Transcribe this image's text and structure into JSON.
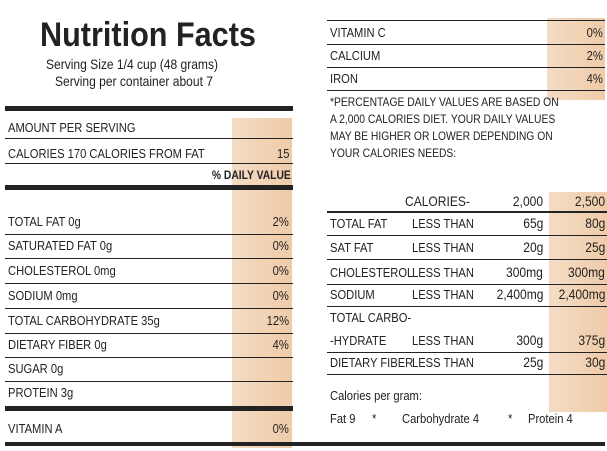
{
  "left": {
    "title": "Nutrition Facts",
    "serving_size": "Serving Size 1/4 cup (48 grams)",
    "servings": "Serving per container about 7",
    "amount_header": "AMOUNT PER SERVING",
    "calories": [
      "CALORIES 170 CALORIES FROM FAT",
      "15"
    ],
    "dv_header": "% DAILY VALUE",
    "rows": [
      [
        "TOTAL FAT 0g",
        "2%"
      ],
      [
        "SATURATED FAT 0g",
        "0%"
      ],
      [
        "CHOLESTEROL 0mg",
        "0%"
      ],
      [
        "SODIUM 0mg",
        "0%"
      ],
      [
        "TOTAL CARBOHYDRATE 35g",
        "12%"
      ],
      [
        "DIETARY FIBER 0g",
        "4%"
      ],
      [
        "SUGAR 0g"
      ],
      [
        "PROTEIN 3g"
      ],
      [
        "VITAMIN A",
        "0%"
      ]
    ]
  },
  "right": {
    "vitamins": [
      [
        "VITAMIN C",
        "0%"
      ],
      [
        "CALCIUM",
        "2%"
      ],
      [
        "IRON",
        "4%"
      ]
    ],
    "footnote": [
      "*PERCENTAGE DAILY VALUES ARE BASED ON",
      "A 2,000 CALORIES DIET. YOUR DAILY VALUES",
      "MAY BE HIGHER OR LOWER DEPENDING ON",
      "YOUR CALORIES NEEDS:"
    ],
    "table": {
      "header": [
        "CALORIES-",
        "2,000",
        "2,500"
      ],
      "rows": [
        [
          "TOTAL FAT",
          "LESS THAN",
          "65g",
          "80g"
        ],
        [
          "SAT FAT",
          "LESS THAN",
          "20g",
          "25g"
        ],
        [
          "CHOLESTEROL",
          "LESS THAN",
          "300mg",
          "300mg"
        ],
        [
          "SODIUM",
          "LESS THAN",
          "2,400mg",
          "2,400mg"
        ],
        [
          "TOTAL CARBO-",
          "-HYDRATE",
          "LESS THAN",
          "300g",
          "375g"
        ],
        [
          "DIETARY FIBER",
          "LESS THAN",
          "25g",
          "30g"
        ]
      ]
    },
    "per_gram": {
      "title": "Calories per gram:",
      "items": [
        "Fat 9",
        "*",
        "Carbohydrate 4",
        "*",
        "Protein 4"
      ]
    }
  }
}
